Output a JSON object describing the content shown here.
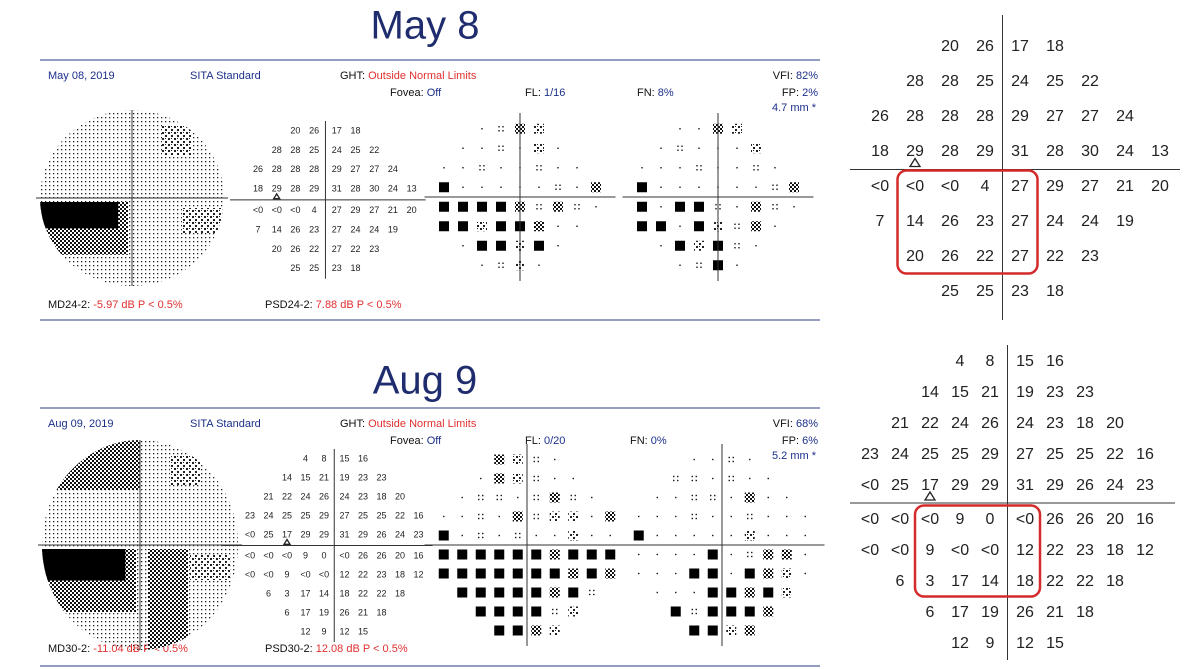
{
  "panels": [
    {
      "title": "May 8",
      "date": "May 08, 2019",
      "strategy": "SITA Standard",
      "ght_label": "GHT:",
      "ght_value": "Outside Normal Limits",
      "vfi_label": "VFI:",
      "vfi_value": "82%",
      "fovea_label": "Fovea:",
      "fovea_value": "Off",
      "fl_label": "FL:",
      "fl_value": "1/16",
      "fn_label": "FN:",
      "fn_value": "8%",
      "fp_label": "FP:",
      "fp_value": "2%",
      "pupil": "4.7 mm *",
      "md_label": "MD24-2:",
      "md_value": "-5.97 dB P < 0.5%",
      "psd_label": "PSD24-2:",
      "psd_value": "7.88 dB P < 0.5%",
      "thresholds": [
        [
          20,
          26,
          17,
          18
        ],
        [
          28,
          28,
          25,
          24,
          25,
          22
        ],
        [
          26,
          28,
          28,
          28,
          29,
          27,
          27,
          24
        ],
        [
          18,
          29,
          28,
          29,
          31,
          28,
          30,
          24,
          13
        ],
        [
          "<0",
          "<0",
          "<0",
          4,
          27,
          29,
          27,
          21,
          20
        ],
        [
          7,
          14,
          26,
          23,
          27,
          24,
          24,
          19
        ],
        [
          20,
          26,
          22,
          27,
          22,
          23
        ],
        [
          25,
          25,
          23,
          18
        ]
      ]
    },
    {
      "title": "Aug 9",
      "date": "Aug 09, 2019",
      "strategy": "SITA Standard",
      "ght_label": "GHT:",
      "ght_value": "Outside Normal Limits",
      "vfi_label": "VFI:",
      "vfi_value": "68%",
      "fovea_label": "Fovea:",
      "fovea_value": "Off",
      "fl_label": "FL:",
      "fl_value": "0/20",
      "fn_label": "FN:",
      "fn_value": "0%",
      "fp_label": "FP:",
      "fp_value": "6%",
      "pupil": "5.2 mm *",
      "md_label": "MD30-2:",
      "md_value": "-11.04 dB P < 0.5%",
      "psd_label": "PSD30-2:",
      "psd_value": "12.08 dB P < 0.5%",
      "thresholds": [
        [
          4,
          8,
          15,
          16
        ],
        [
          14,
          15,
          21,
          19,
          23,
          23
        ],
        [
          21,
          22,
          24,
          26,
          24,
          23,
          18,
          20
        ],
        [
          23,
          24,
          25,
          25,
          29,
          27,
          25,
          25,
          22,
          16
        ],
        [
          "<0",
          25,
          17,
          29,
          29,
          31,
          29,
          26,
          24,
          23
        ],
        [
          "<0",
          "<0",
          "<0",
          9,
          0,
          "<0",
          26,
          26,
          20,
          16
        ],
        [
          "<0",
          "<0",
          9,
          "<0",
          "<0",
          12,
          22,
          23,
          18,
          12
        ],
        [
          6,
          3,
          17,
          14,
          18,
          22,
          22,
          18
        ],
        [
          6,
          17,
          19,
          26,
          21,
          18
        ],
        [
          12,
          9,
          12,
          15
        ]
      ]
    }
  ]
}
